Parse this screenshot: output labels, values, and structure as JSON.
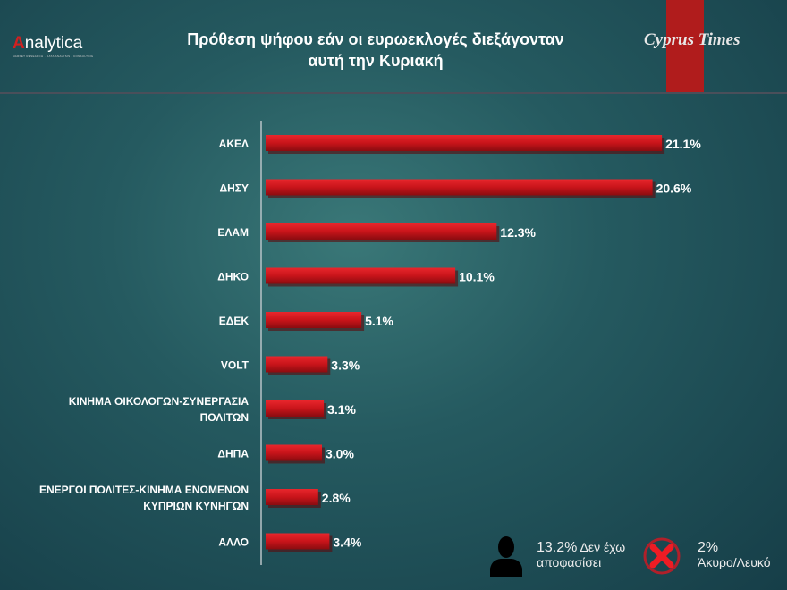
{
  "header": {
    "logo": "nalytica",
    "logo_letter": "A",
    "logo_tagline": "MARKET RESEARCH · DATA ANALYSIS · CONSULTING",
    "title": "Πρόθεση ψήφου εάν οι ευρωεκλογές διεξάγονταν αυτή την Κυριακή",
    "title_line1": "Πρόθεση ψήφου εάν οι ευρωεκλογές διεξάγονταν",
    "title_line2": "αυτή την Κυριακή",
    "publisher": "Cyprus Times",
    "accent": "#b01c1c"
  },
  "chart_data": {
    "type": "bar",
    "orientation": "horizontal",
    "title": "Πρόθεση ψήφου εάν οι ευρωεκλογές διεξάγονταν αυτή την Κυριακή",
    "categories": [
      [
        "ΑΚΕΛ"
      ],
      [
        "ΔΗΣΥ"
      ],
      [
        "ΕΛΑΜ"
      ],
      [
        "ΔΗΚΟ"
      ],
      [
        "ΕΔΕΚ"
      ],
      [
        "VOLT"
      ],
      [
        "ΚΙΝΗΜΑ ΟΙΚΟΛΟΓΩΝ-ΣΥΝΕΡΓΑΣΙΑ",
        "ΠΟΛΙΤΩΝ"
      ],
      [
        "ΔΗΠΑ"
      ],
      [
        "ΕΝΕΡΓΟΙ ΠΟΛΙΤΕΣ-ΚΙΝΗΜΑ ΕΝΩΜΕΝΩΝ",
        "ΚΥΠΡΙΩΝ ΚΥΝΗΓΩΝ"
      ],
      [
        "ΑΛΛΟ"
      ]
    ],
    "values": [
      21.1,
      20.6,
      12.3,
      10.1,
      5.1,
      3.3,
      3.1,
      3.0,
      2.8,
      3.4
    ],
    "labels": [
      "21.1%",
      "20.6%",
      "12.3%",
      "10.1%",
      "5.1%",
      "3.3%",
      "3.1%",
      "3.0%",
      "2.8%",
      "3.4%"
    ],
    "bar_color": "#c8141a",
    "grid": false,
    "xlim": [
      0,
      22
    ]
  },
  "legend": {
    "undecided_value": "13.2%",
    "undecided_label": "Δεν έχω",
    "undecided_label2": "αποφασίσει",
    "invalid_value": "2%",
    "invalid_label": "Άκυρο/Λευκό"
  }
}
